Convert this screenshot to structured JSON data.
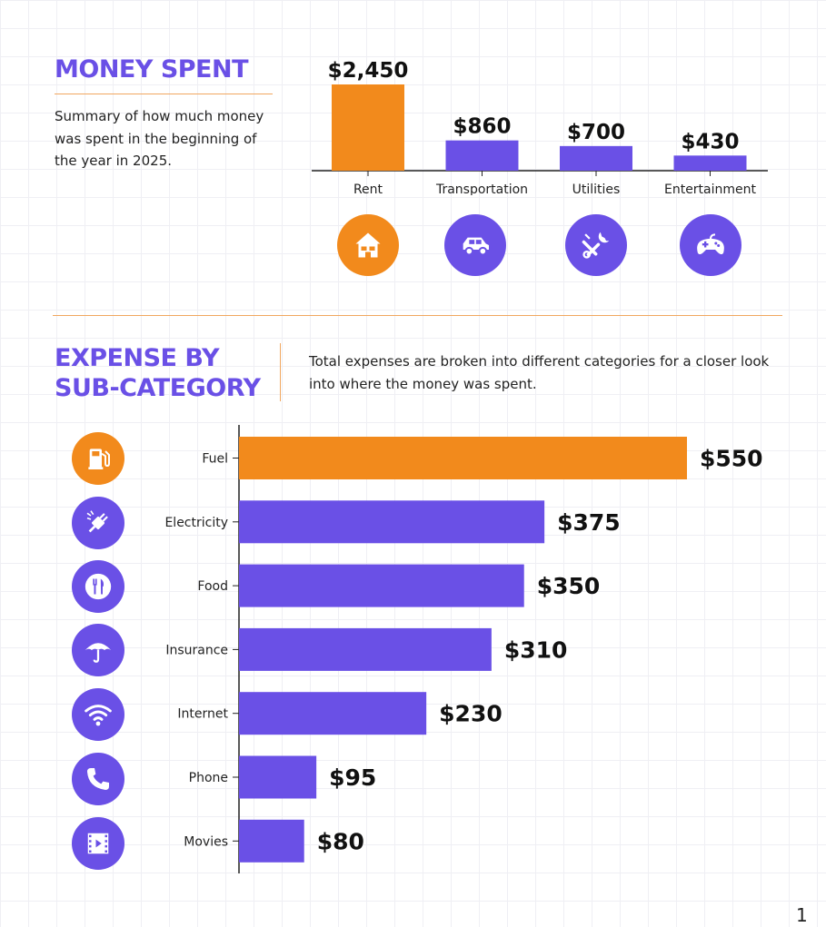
{
  "colors": {
    "accent": "#6a50e6",
    "highlight": "#f28a1c",
    "axis": "#222222"
  },
  "money_spent": {
    "title": "MONEY SPENT",
    "description": "Summary of how much money was spent in the beginning of the year in 2025."
  },
  "expense_section": {
    "title_line1": "EXPENSE BY",
    "title_line2": "SUB-CATEGORY",
    "description": "Total expenses are broken into different categories for a closer look into where the money was spent."
  },
  "page_number": "1",
  "chart_data": [
    {
      "type": "bar",
      "orientation": "vertical",
      "categories": [
        "Rent",
        "Transportation",
        "Utilities",
        "Entertainment"
      ],
      "values": [
        2450,
        860,
        700,
        430
      ],
      "value_labels": [
        "$2,450",
        "$860",
        "$700",
        "$430"
      ],
      "highlight": "Rent",
      "icons": [
        "house-icon",
        "car-icon",
        "tools-icon",
        "gamepad-icon"
      ]
    },
    {
      "type": "bar",
      "orientation": "horizontal",
      "categories": [
        "Fuel",
        "Electricity",
        "Food",
        "Insurance",
        "Internet",
        "Phone",
        "Movies"
      ],
      "values": [
        550,
        375,
        350,
        310,
        230,
        95,
        80
      ],
      "value_labels": [
        "$550",
        "$375",
        "$350",
        "$310",
        "$230",
        "$95",
        "$80"
      ],
      "highlight": "Fuel",
      "icons": [
        "fuel-pump-icon",
        "plug-icon",
        "utensils-icon",
        "umbrella-icon",
        "wifi-icon",
        "phone-icon",
        "film-icon"
      ]
    }
  ]
}
